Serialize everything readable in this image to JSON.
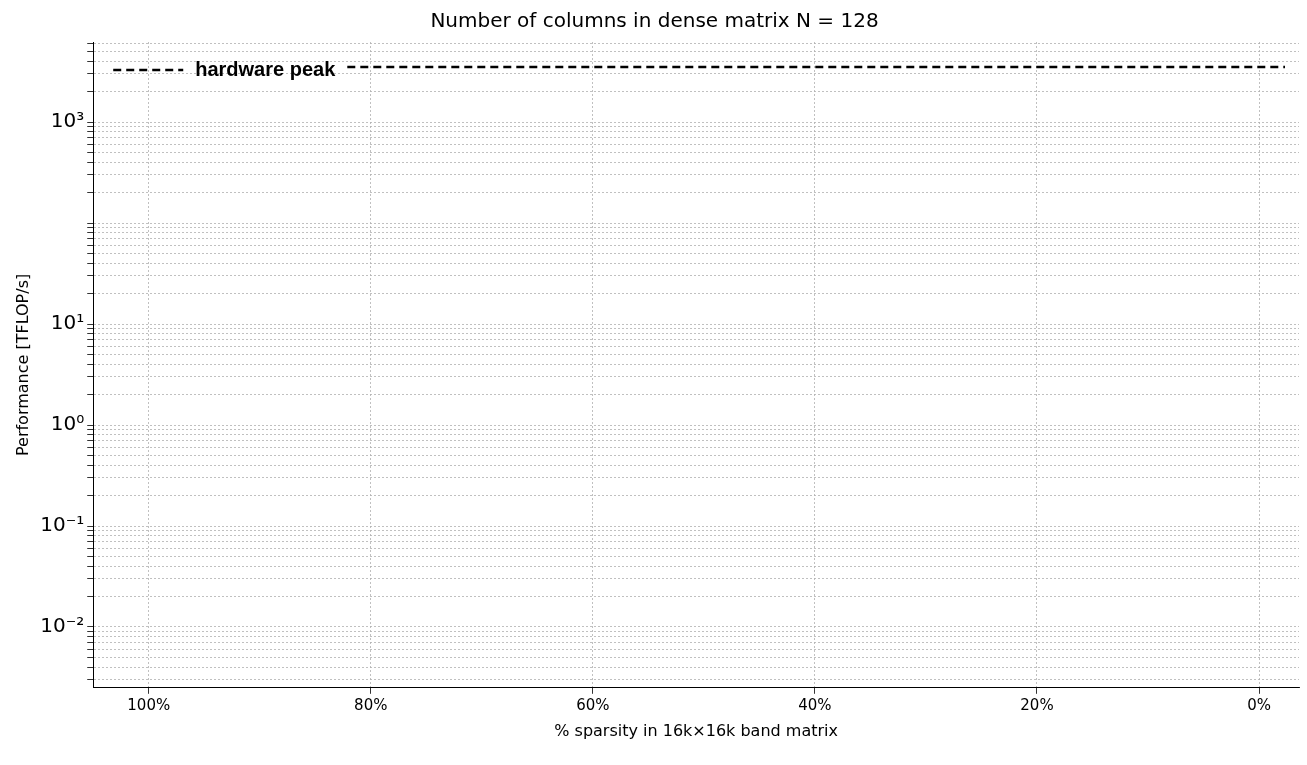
{
  "chart_data": {
    "type": "line",
    "title": "Number of columns in dense matrix N = 128",
    "xlabel": "% sparsity in 16k×16k band matrix",
    "ylabel": "Performance [TFLOP/s]",
    "xlim": [
      105,
      -3.6
    ],
    "xticks": [
      {
        "value": 100,
        "label": "100%"
      },
      {
        "value": 80,
        "label": "80%"
      },
      {
        "value": 60,
        "label": "60%"
      },
      {
        "value": 40,
        "label": "40%"
      },
      {
        "value": 20,
        "label": "20%"
      },
      {
        "value": 0,
        "label": "0%"
      }
    ],
    "ylim": [
      0.0025,
      6200
    ],
    "log": "y",
    "yticks": [
      {
        "value": 0.01,
        "label": "10⁻²"
      },
      {
        "value": 0.1,
        "label": "10⁻¹"
      },
      {
        "value": 1,
        "label": "10⁰"
      },
      {
        "value": 10,
        "label": "10¹"
      },
      {
        "value": 1000,
        "label": "10³"
      },
      {
        "value": 0.003,
        "label": null
      },
      {
        "value": 0.004,
        "label": null
      },
      {
        "value": 0.005,
        "label": null
      },
      {
        "value": 0.006,
        "label": null
      },
      {
        "value": 0.007,
        "label": null
      },
      {
        "value": 0.008,
        "label": null
      },
      {
        "value": 0.009,
        "label": null
      },
      {
        "value": 0.02,
        "label": null
      },
      {
        "value": 0.03,
        "label": null
      },
      {
        "value": 0.04,
        "label": null
      },
      {
        "value": 0.05,
        "label": null
      },
      {
        "value": 0.06,
        "label": null
      },
      {
        "value": 0.07,
        "label": null
      },
      {
        "value": 0.08,
        "label": null
      },
      {
        "value": 0.09,
        "label": null
      },
      {
        "value": 0.2,
        "label": null
      },
      {
        "value": 0.3,
        "label": null
      },
      {
        "value": 0.4,
        "label": null
      },
      {
        "value": 0.5,
        "label": null
      },
      {
        "value": 0.6,
        "label": null
      },
      {
        "value": 0.7,
        "label": null
      },
      {
        "value": 0.8,
        "label": null
      },
      {
        "value": 0.9,
        "label": null
      },
      {
        "value": 2,
        "label": null
      },
      {
        "value": 3,
        "label": null
      },
      {
        "value": 4,
        "label": null
      },
      {
        "value": 5,
        "label": null
      },
      {
        "value": 6,
        "label": null
      },
      {
        "value": 7,
        "label": null
      },
      {
        "value": 8,
        "label": null
      },
      {
        "value": 9,
        "label": null
      },
      {
        "value": 20,
        "label": null
      },
      {
        "value": 30,
        "label": null
      },
      {
        "value": 40,
        "label": null
      },
      {
        "value": 50,
        "label": null
      },
      {
        "value": 60,
        "label": null
      },
      {
        "value": 70,
        "label": null
      },
      {
        "value": 80,
        "label": null
      },
      {
        "value": 90,
        "label": null
      },
      {
        "value": 100,
        "label": null
      },
      {
        "value": 200,
        "label": null
      },
      {
        "value": 300,
        "label": null
      },
      {
        "value": 400,
        "label": null
      },
      {
        "value": 500,
        "label": null
      },
      {
        "value": 600,
        "label": null
      },
      {
        "value": 700,
        "label": null
      },
      {
        "value": 800,
        "label": null
      },
      {
        "value": 900,
        "label": null
      },
      {
        "value": 2000,
        "label": null
      },
      {
        "value": 3000,
        "label": null
      },
      {
        "value": 4000,
        "label": null
      },
      {
        "value": 5000,
        "label": null
      },
      {
        "value": 6000,
        "label": null
      }
    ],
    "grid": true,
    "legend": "top left",
    "ref_lines": [
      {
        "axis": "y",
        "value": 3500,
        "label": "hardware peak",
        "color": "#000000",
        "line_style": "dashed"
      }
    ]
  }
}
